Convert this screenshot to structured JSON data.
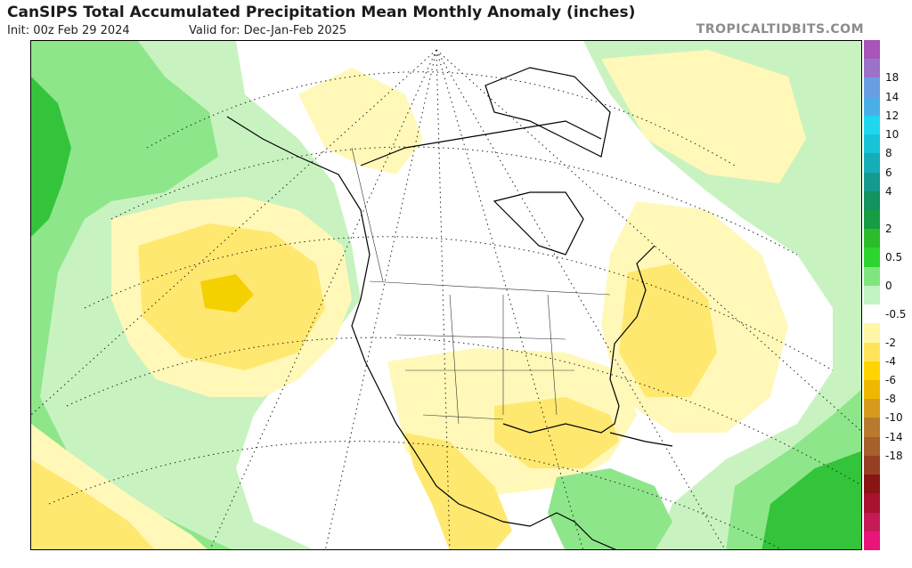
{
  "header": {
    "title": "CanSIPS Total Accumulated Precipitation Mean Monthly Anomaly (inches)",
    "init": "Init: 00z Feb 29 2024",
    "valid": "Valid for: Dec-Jan-Feb 2025",
    "credit": "TROPICALTIDBITS.COM"
  },
  "legend": {
    "colors": [
      "#a755b9",
      "#9a72c8",
      "#6b9de2",
      "#4aaee9",
      "#1fd7ee",
      "#18c3d8",
      "#15adb8",
      "#149b8e",
      "#13935f",
      "#159d44",
      "#2bbc2b",
      "#2ed42e",
      "#7fe67f",
      "#c3f2c3",
      "#ffffff",
      "#fff6a8",
      "#ffe45a",
      "#ffd400",
      "#eeb800",
      "#d89a1e",
      "#b87a2e",
      "#a5602b",
      "#963f24",
      "#8a1414",
      "#a8122e",
      "#c51a55",
      "#e8157a"
    ],
    "ticks": [
      "18",
      "14",
      "12",
      "10",
      "8",
      "6",
      "4",
      "2",
      "0.5",
      "0",
      "-0.5",
      "-2",
      "-4",
      "-6",
      "-8",
      "-10",
      "-14",
      "-18"
    ]
  },
  "map": {
    "description_labels": [],
    "colors": {
      "green_light": "#c8f3c0",
      "green_mid": "#8ee68a",
      "green_dark": "#34c43c",
      "yellow_light": "#fff8b8",
      "yellow_mid": "#ffe870",
      "yellow_dark": "#f5d000"
    }
  }
}
